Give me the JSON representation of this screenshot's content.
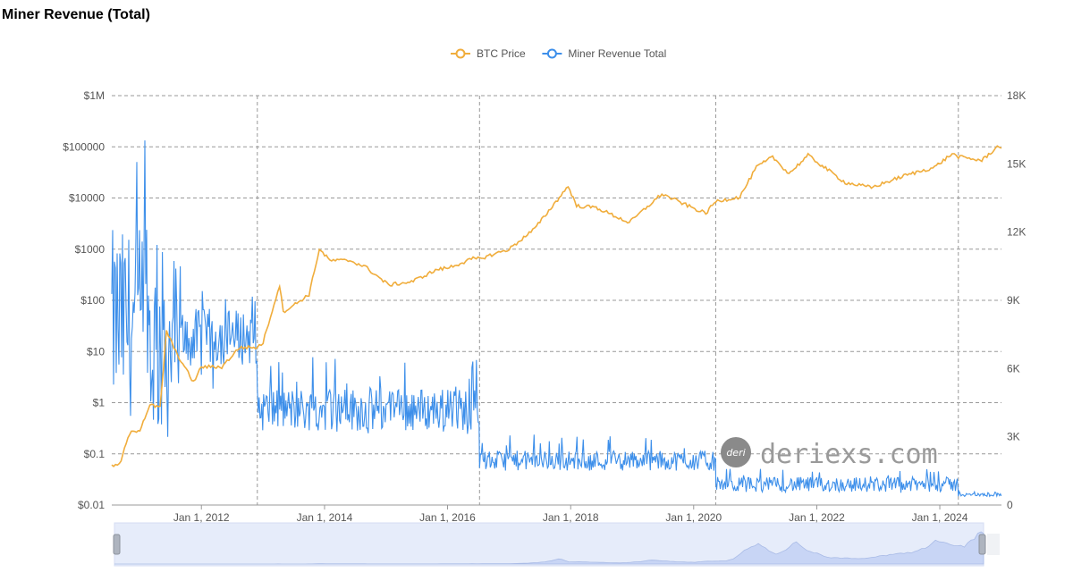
{
  "title": "Miner Revenue (Total)",
  "watermark": {
    "text": "deriexs.com",
    "logo_text": "deri"
  },
  "colors": {
    "btc_price": "#F0AD3C",
    "miner_revenue": "#3D8FEA",
    "grid": "#999999",
    "zoom_fill": "#E6ECFA",
    "zoom_area": "#C8D5F5"
  },
  "chart_data": {
    "type": "line",
    "title": "Miner Revenue (Total)",
    "legend": {
      "position": "top-center",
      "items": [
        "BTC Price",
        "Miner Revenue Total"
      ]
    },
    "grid": true,
    "x_ticks": [
      "Jan 1, 2012",
      "Jan 1, 2014",
      "Jan 1, 2016",
      "Jan 1, 2018",
      "Jan 1, 2020",
      "Jan 1, 2022",
      "Jan 1, 2024"
    ],
    "x_range": [
      "2010-07-18",
      "2025-01-01"
    ],
    "vertical_markers": [
      "2012-11-28",
      "2016-07-09",
      "2020-05-11",
      "2024-04-20"
    ],
    "y_left": {
      "scale": "log",
      "ticks": [
        "$0.01",
        "$0.1",
        "$1",
        "$10",
        "$100",
        "$1000",
        "$10000",
        "$100000",
        "$1M"
      ],
      "range": [
        0.01,
        1000000
      ]
    },
    "y_right": {
      "scale": "linear",
      "ticks": [
        "0",
        "3K",
        "6K",
        "9K",
        "12K",
        "15K",
        "18K"
      ],
      "range": [
        0,
        18000
      ]
    },
    "series": [
      {
        "name": "BTC Price",
        "axis": "left",
        "points": [
          [
            "2010-07-18",
            0.06
          ],
          [
            "2010-09-01",
            0.06
          ],
          [
            "2010-11-01",
            0.25
          ],
          [
            "2011-01-01",
            0.3
          ],
          [
            "2011-03-01",
            0.9
          ],
          [
            "2011-05-01",
            0.8
          ],
          [
            "2011-06-08",
            25
          ],
          [
            "2011-08-01",
            10
          ],
          [
            "2011-11-15",
            2.5
          ],
          [
            "2012-01-01",
            5
          ],
          [
            "2012-05-01",
            5
          ],
          [
            "2012-08-15",
            12
          ],
          [
            "2012-11-28",
            12
          ],
          [
            "2013-01-01",
            15
          ],
          [
            "2013-04-09",
            200
          ],
          [
            "2013-05-01",
            60
          ],
          [
            "2013-07-01",
            80
          ],
          [
            "2013-10-01",
            130
          ],
          [
            "2013-12-01",
            1000
          ],
          [
            "2014-02-01",
            600
          ],
          [
            "2014-06-01",
            600
          ],
          [
            "2014-09-01",
            450
          ],
          [
            "2015-01-15",
            200
          ],
          [
            "2015-06-01",
            230
          ],
          [
            "2015-11-01",
            400
          ],
          [
            "2016-01-01",
            430
          ],
          [
            "2016-06-01",
            650
          ],
          [
            "2016-07-09",
            650
          ],
          [
            "2017-01-01",
            1000
          ],
          [
            "2017-06-01",
            2500
          ],
          [
            "2017-12-17",
            17000
          ],
          [
            "2018-02-05",
            7000
          ],
          [
            "2018-06-01",
            6500
          ],
          [
            "2018-12-15",
            3300
          ],
          [
            "2019-06-26",
            12000
          ],
          [
            "2019-12-17",
            6600
          ],
          [
            "2020-03-13",
            5000
          ],
          [
            "2020-05-11",
            8600
          ],
          [
            "2020-10-01",
            10500
          ],
          [
            "2021-01-08",
            40000
          ],
          [
            "2021-04-14",
            63000
          ],
          [
            "2021-07-20",
            30000
          ],
          [
            "2021-11-10",
            68000
          ],
          [
            "2022-06-18",
            20000
          ],
          [
            "2022-11-21",
            16000
          ],
          [
            "2023-06-01",
            27000
          ],
          [
            "2023-12-01",
            40000
          ],
          [
            "2024-03-14",
            73000
          ],
          [
            "2024-04-20",
            64000
          ],
          [
            "2024-09-06",
            54000
          ],
          [
            "2024-12-17",
            106000
          ],
          [
            "2025-01-01",
            94000
          ]
        ]
      },
      {
        "name": "Miner Revenue Total",
        "axis": "right",
        "segments": [
          {
            "start": "2010-07-18",
            "end": "2011-03-01",
            "low": 2000,
            "high": 17000,
            "typical": 8000
          },
          {
            "start": "2011-03-01",
            "end": "2011-09-01",
            "low": 2000,
            "high": 17500,
            "typical": 7000
          },
          {
            "start": "2011-09-01",
            "end": "2012-11-28",
            "low": 5000,
            "high": 9500,
            "typical": 7400
          },
          {
            "start": "2012-11-28",
            "end": "2016-07-09",
            "low": 3000,
            "high": 6500,
            "typical": 4200
          },
          {
            "start": "2016-07-09",
            "end": "2020-05-11",
            "low": 1500,
            "high": 3100,
            "typical": 1950
          },
          {
            "start": "2020-05-11",
            "end": "2024-04-20",
            "low": 400,
            "high": 1600,
            "typical": 900
          },
          {
            "start": "2024-04-20",
            "end": "2025-01-01",
            "low": 350,
            "high": 600,
            "typical": 450
          }
        ]
      }
    ]
  }
}
